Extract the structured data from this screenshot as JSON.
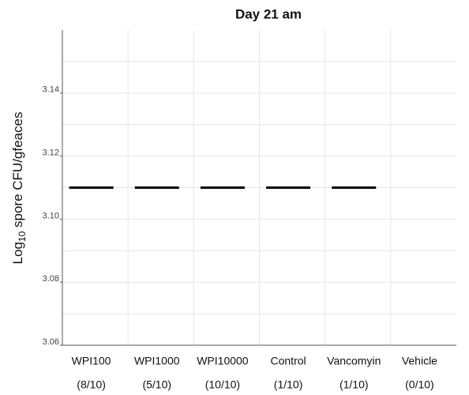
{
  "chart_data": {
    "type": "mean-line",
    "title": "Day 21 am",
    "y_label": {
      "prefix": "Log",
      "subscript": "10",
      "suffix": " spore CFU/gfeaces"
    },
    "categories": [
      "WPI100",
      "WPI1000",
      "WPI10000",
      "Control",
      "Vancomyin",
      "Vehicle"
    ],
    "sublabels": [
      "(8/10)",
      "(5/10)",
      "(10/10)",
      "(1/10)",
      "(1/10)",
      "(0/10)"
    ],
    "values": [
      3.11,
      3.11,
      3.11,
      3.11,
      3.11,
      null
    ],
    "color": "#000000",
    "ylim": [
      3.06,
      3.16
    ],
    "yticks": [
      3.06,
      3.08,
      {
        "value": 3.1,
        "label": "3.10"
      },
      3.12,
      3.14
    ],
    "y_minor_ticks": [
      3.07,
      3.09,
      3.11,
      3.13,
      3.15
    ],
    "grid": true
  }
}
